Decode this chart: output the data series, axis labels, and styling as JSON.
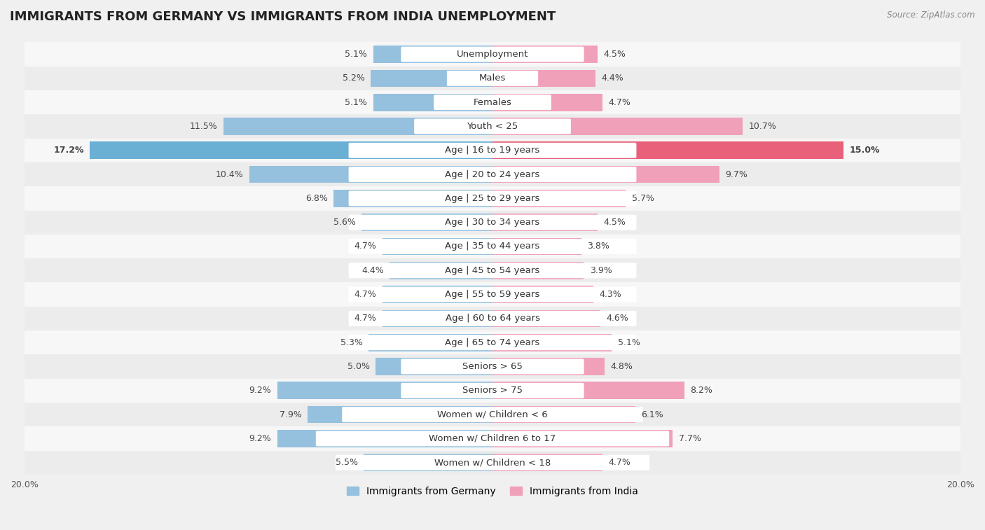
{
  "title": "IMMIGRANTS FROM GERMANY VS IMMIGRANTS FROM INDIA UNEMPLOYMENT",
  "source": "Source: ZipAtlas.com",
  "categories": [
    "Unemployment",
    "Males",
    "Females",
    "Youth < 25",
    "Age | 16 to 19 years",
    "Age | 20 to 24 years",
    "Age | 25 to 29 years",
    "Age | 30 to 34 years",
    "Age | 35 to 44 years",
    "Age | 45 to 54 years",
    "Age | 55 to 59 years",
    "Age | 60 to 64 years",
    "Age | 65 to 74 years",
    "Seniors > 65",
    "Seniors > 75",
    "Women w/ Children < 6",
    "Women w/ Children 6 to 17",
    "Women w/ Children < 18"
  ],
  "germany_values": [
    5.1,
    5.2,
    5.1,
    11.5,
    17.2,
    10.4,
    6.8,
    5.6,
    4.7,
    4.4,
    4.7,
    4.7,
    5.3,
    5.0,
    9.2,
    7.9,
    9.2,
    5.5
  ],
  "india_values": [
    4.5,
    4.4,
    4.7,
    10.7,
    15.0,
    9.7,
    5.7,
    4.5,
    3.8,
    3.9,
    4.3,
    4.6,
    5.1,
    4.8,
    8.2,
    6.1,
    7.7,
    4.7
  ],
  "germany_color": "#95c0de",
  "india_color": "#f0a0b8",
  "germany_highlight_color": "#6aafd4",
  "india_highlight_color": "#e8607a",
  "germany_label": "Immigrants from Germany",
  "india_label": "Immigrants from India",
  "axis_max": 20.0,
  "row_colors": [
    "#f7f7f7",
    "#ececec"
  ],
  "title_fontsize": 13,
  "label_fontsize": 9.5,
  "value_fontsize": 9,
  "bg_color": "#f0f0f0"
}
